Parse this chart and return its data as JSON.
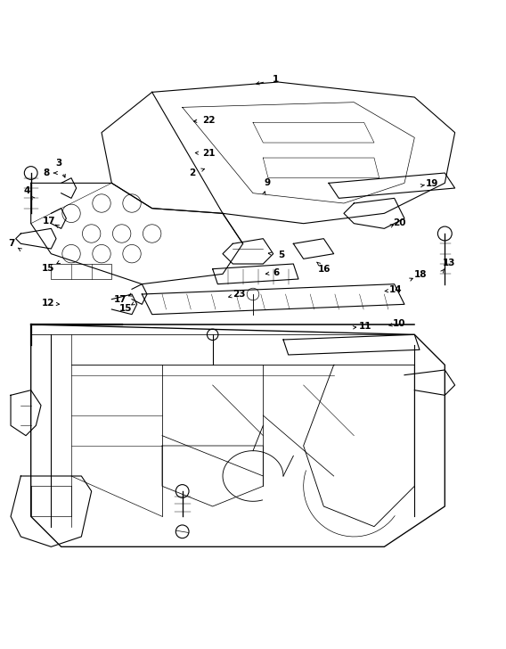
{
  "background_color": "#ffffff",
  "line_color": "#000000",
  "figsize": [
    5.68,
    7.28
  ],
  "dpi": 100
}
